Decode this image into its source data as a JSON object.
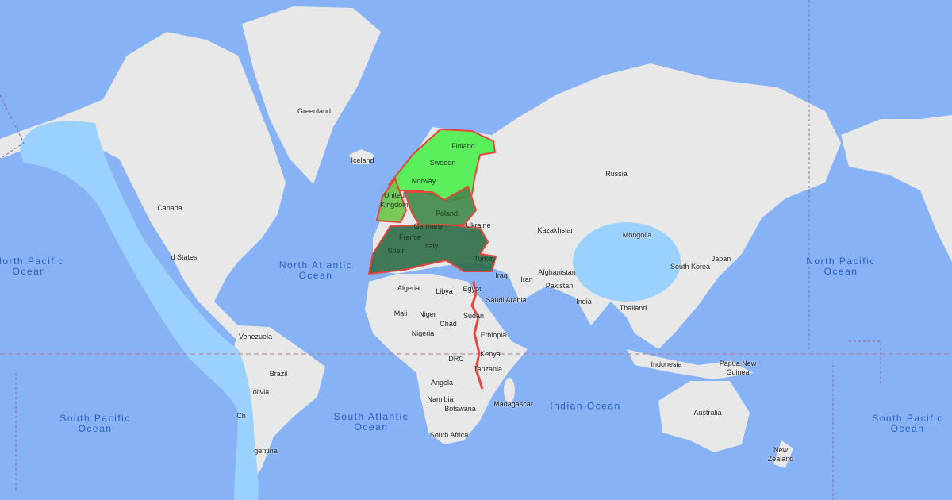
{
  "colors": {
    "ocean": "#87b2f5",
    "land": "#e8e8e8",
    "overlay_light_blue": "#9bd1ff",
    "route": "#e8453c",
    "nordic": "#4cf04c",
    "uk": "#6ac74a",
    "central": "#3f8a4a",
    "south": "#2f6b48"
  },
  "oceans": [
    "North Pacific Ocean",
    "North Atlantic Ocean",
    "South Pacific Ocean",
    "South Atlantic Ocean",
    "Indian Ocean",
    "North Pacific Ocean",
    "South Pacific Ocean"
  ],
  "countries": [
    "Greenland",
    "Iceland",
    "Canada",
    "d States",
    "Venezuela",
    "Brazil",
    "olivia",
    "Ch",
    "gentina",
    "Russia",
    "Finland",
    "Sweden",
    "Norway",
    "United Kingdom",
    "Poland",
    "Germany",
    "Ukraine",
    "France",
    "Italy",
    "Spain",
    "Turkey",
    "Kazakhstan",
    "Mongolia",
    "Japan",
    "South Korea",
    "Iraq",
    "Iran",
    "Afghanistan",
    "Pakistan",
    "India",
    "Thailand",
    "Algeria",
    "Libya",
    "Egypt",
    "Saudi Arabia",
    "Mali",
    "Niger",
    "Chad",
    "Sudan",
    "Nigeria",
    "Ethiopia",
    "DRC",
    "Kenya",
    "Tanzania",
    "Angola",
    "Namibia",
    "Botswana",
    "South Africa",
    "Madagascar",
    "Indonesia",
    "Papua New Guinea",
    "Australia",
    "New Zealand"
  ]
}
